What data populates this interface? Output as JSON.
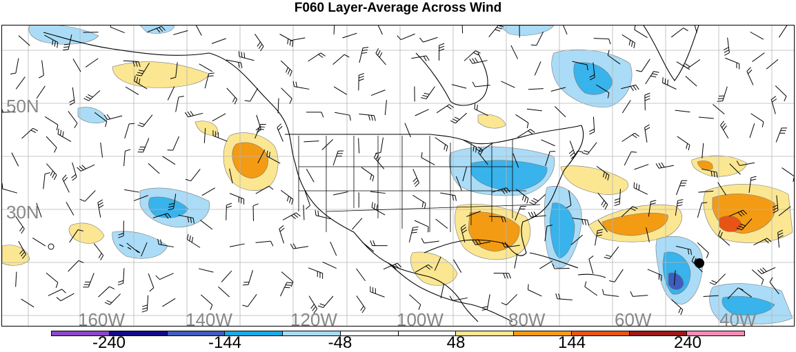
{
  "title": "F060 Layer-Average Across Wind",
  "map": {
    "lat_labels": [
      "50N",
      "30N"
    ],
    "lon_labels": [
      "160W",
      "140W",
      "120W",
      "100W",
      "80W",
      "60W",
      "40W"
    ],
    "colors": {
      "grid": "#b4b4b4",
      "coast": "#000000",
      "label": "#888888",
      "pos_light": "#fbe692",
      "pos_mid": "#f49b14",
      "pos_strong": "#e85414",
      "neg_light": "#aadcf7",
      "neg_mid": "#38b3eb",
      "neg_strong": "#3f5cbf"
    }
  },
  "colorbar": {
    "colors": [
      "#8c46c8",
      "#140a8c",
      "#3f5cbf",
      "#18aae6",
      "#a6dcf6",
      "#ffffff",
      "#ffffff",
      "#fbe692",
      "#f49b14",
      "#e85414",
      "#a01818",
      "#f48cb4"
    ],
    "labels": [
      "-240",
      "-144",
      "-48",
      "48",
      "144",
      "240"
    ]
  }
}
